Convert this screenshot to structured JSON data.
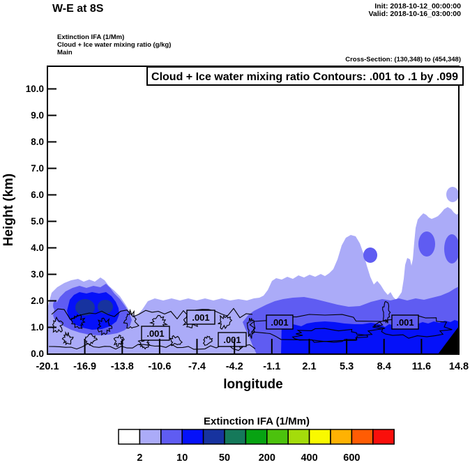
{
  "header": {
    "title": "W-E at 8S",
    "init_label": "Init: 2018-10-12_00:00:00",
    "valid_label": "Valid: 2018-10-16_03:00:00",
    "field_lines": [
      "Extinction IFA   (1/Mm)",
      "Cloud + Ice water mixing ratio   (g/kg)",
      "Main"
    ],
    "cross_section": "Cross-Section: (130,348) to (454,348)"
  },
  "plot": {
    "contour_box_label": "Cloud + Ice water mixing ratio Contours: .001 to .1 by .099",
    "xlabel": "longitude",
    "ylabel": "Height (km)",
    "x_tick_labels": [
      "-20.1",
      "-16.9",
      "-13.8",
      "-10.6",
      "-7.4",
      "-4.2",
      "-1.1",
      "2.1",
      "5.3",
      "8.4",
      "11.6",
      "14.8"
    ],
    "y_tick_labels": [
      "10.0",
      "9.0",
      "8.0",
      "7.0",
      "6.0",
      "5.0",
      "4.0",
      "3.0",
      "2.0",
      "1.0",
      "0.0"
    ],
    "contour_labels": [
      ".001",
      ".001",
      ".001",
      ".001",
      ".001"
    ]
  },
  "colorbar": {
    "title": "Extinction IFA  (1/Mm)",
    "title_color": "#1c1c55",
    "tick_labels": [
      "2",
      "10",
      "50",
      "200",
      "400",
      "600"
    ],
    "colors": [
      "#ffffff",
      "#ababf8",
      "#5f5cf2",
      "#0511f9",
      "#17339f",
      "#15795a",
      "#07a312",
      "#4cc20d",
      "#a4dc0b",
      "#f9f900",
      "#ffb203",
      "#ff5c04",
      "#fa0f0b"
    ]
  },
  "chart_data": {
    "type": "heatmap",
    "title": "Cloud + Ice water mixing ratio Contours: .001 to .1 by .099",
    "subtitle_fields": [
      "Extinction IFA (1/Mm)",
      "Cloud + Ice water mixing ratio (g/kg)",
      "Main"
    ],
    "xlabel": "longitude",
    "ylabel": "Height (km)",
    "xlim": [
      -20.1,
      14.8
    ],
    "ylim": [
      0.0,
      10.9
    ],
    "x_ticks": [
      -20.1,
      -16.9,
      -13.8,
      -10.6,
      -7.4,
      -4.2,
      -1.1,
      2.1,
      5.3,
      8.4,
      11.6,
      14.8
    ],
    "y_ticks": [
      0.0,
      1.0,
      2.0,
      3.0,
      4.0,
      5.0,
      6.0,
      7.0,
      8.0,
      9.0,
      10.0
    ],
    "fill_variable": "Extinction IFA (1/Mm)",
    "colorbar_tick_values": [
      2,
      10,
      50,
      200,
      400,
      600
    ],
    "colorbar_cell_count": 13,
    "line_contour_variable": "Cloud + Ice water mixing ratio (g/kg)",
    "line_contour_levels": [
      0.001,
      0.1
    ],
    "line_contour_step": 0.099,
    "grid": false,
    "legend_position": "bottom",
    "approx_features": [
      {
        "name": "left-cloud-core",
        "lon_range": [
          -18.8,
          -14.5
        ],
        "height_km_range": [
          0.9,
          2.6
        ],
        "max_extinction_band_1perMm": "200-400"
      },
      {
        "name": "shallow-layer-band",
        "lon_range": [
          -20.1,
          14.8
        ],
        "height_km_range": [
          0.0,
          2.2
        ],
        "extinction_band_1perMm": "2-50"
      },
      {
        "name": "right-low-cloud-band",
        "lon_range": [
          -1.5,
          14.8
        ],
        "height_km_range": [
          0.0,
          1.2
        ],
        "extinction_band_1perMm": "50-200"
      },
      {
        "name": "elevated-cloud-mid",
        "lon_range": [
          4.0,
          7.5
        ],
        "height_km_range": [
          3.0,
          4.6
        ],
        "extinction_band_1perMm": "2-50"
      },
      {
        "name": "elevated-cloud-right",
        "lon_range": [
          10.0,
          14.8
        ],
        "height_km_range": [
          2.5,
          5.6
        ],
        "extinction_band_1perMm": "2-50"
      },
      {
        "name": "terrain-right-corner",
        "lon_range": [
          13.1,
          14.8
        ],
        "height_km_range": [
          0.0,
          1.0
        ],
        "note": "black terrain wedge"
      },
      {
        "name": "cloud-ice-0.001-contour",
        "lon_range": [
          -20.1,
          14.8
        ],
        "height_km_range": [
          0.2,
          1.8
        ],
        "note": "wiggly .001 g/kg contour with 5 boxed labels"
      }
    ]
  }
}
